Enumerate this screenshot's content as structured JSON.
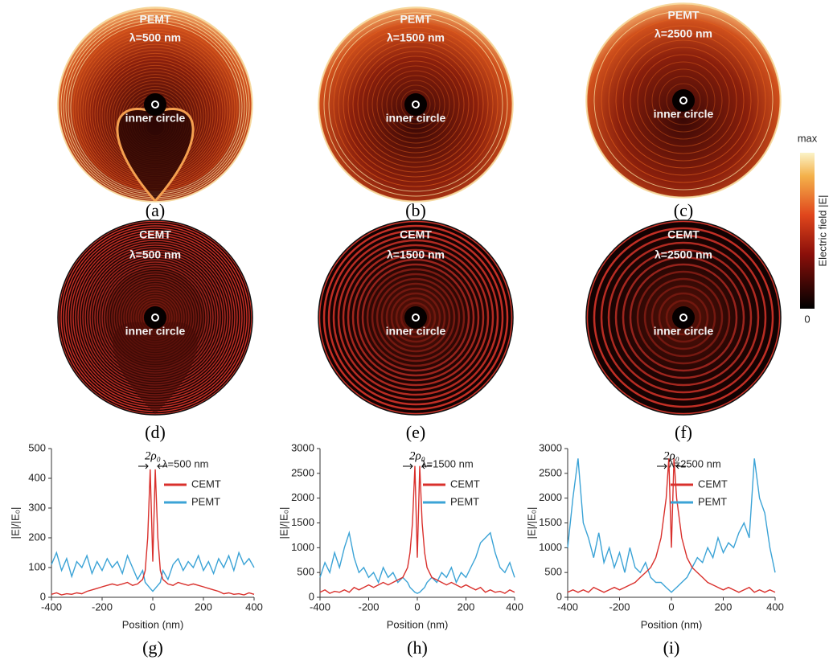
{
  "field_maps": [
    {
      "label": "(a)",
      "method": "PEMT",
      "wavelength": "λ=500 nm",
      "center_label": "inner circle"
    },
    {
      "label": "(b)",
      "method": "PEMT",
      "wavelength": "λ=1500 nm",
      "center_label": "inner circle"
    },
    {
      "label": "(c)",
      "method": "PEMT",
      "wavelength": "λ=2500 nm",
      "center_label": "inner circle"
    },
    {
      "label": "(d)",
      "method": "CEMT",
      "wavelength": "λ=500 nm",
      "center_label": "inner circle"
    },
    {
      "label": "(e)",
      "method": "CEMT",
      "wavelength": "λ=1500 nm",
      "center_label": "inner circle"
    },
    {
      "label": "(f)",
      "method": "CEMT",
      "wavelength": "λ=2500 nm",
      "center_label": "inner circle"
    }
  ],
  "colorbar": {
    "max": "max",
    "min": "0",
    "label": "Electric field |E|"
  },
  "chart_data": [
    {
      "type": "line",
      "panel": "(g)",
      "annotation": "λ=500 nm",
      "marker": "2ρ₀",
      "x_label": "Position (nm)",
      "y_label": "|E|/|E₀|",
      "x": [
        -400,
        -380,
        -360,
        -340,
        -320,
        -300,
        -280,
        -260,
        -240,
        -220,
        -200,
        -180,
        -160,
        -140,
        -120,
        -100,
        -80,
        -60,
        -40,
        -30,
        -20,
        -10,
        0,
        10,
        20,
        30,
        40,
        60,
        80,
        100,
        120,
        140,
        160,
        180,
        200,
        220,
        240,
        260,
        280,
        300,
        320,
        340,
        360,
        380,
        400
      ],
      "xlim": [
        -400,
        400
      ],
      "xticks": [
        -400,
        -200,
        0,
        200,
        400
      ],
      "ylim": [
        0,
        500
      ],
      "yticks": [
        0,
        100,
        200,
        300,
        400,
        500
      ],
      "series": [
        {
          "name": "CEMT",
          "color": "#d9302c",
          "values": [
            10,
            15,
            8,
            12,
            10,
            15,
            12,
            20,
            25,
            30,
            35,
            40,
            45,
            40,
            45,
            50,
            40,
            45,
            60,
            90,
            200,
            430,
            120,
            430,
            200,
            90,
            60,
            45,
            40,
            50,
            45,
            40,
            45,
            40,
            35,
            30,
            25,
            20,
            12,
            15,
            10,
            12,
            8,
            15,
            10
          ]
        },
        {
          "name": "PEMT",
          "color": "#3ba3d6",
          "values": [
            110,
            150,
            90,
            130,
            70,
            120,
            100,
            140,
            80,
            120,
            90,
            130,
            100,
            120,
            80,
            140,
            100,
            60,
            90,
            50,
            40,
            30,
            20,
            30,
            40,
            50,
            90,
            60,
            110,
            130,
            90,
            120,
            100,
            140,
            90,
            120,
            80,
            130,
            100,
            140,
            90,
            150,
            110,
            130,
            100
          ]
        }
      ]
    },
    {
      "type": "line",
      "panel": "(h)",
      "annotation": "λ=1500 nm",
      "marker": "2ρ₀",
      "x_label": "Position (nm)",
      "y_label": "|E|/|E₀|",
      "x": [
        -400,
        -380,
        -360,
        -340,
        -320,
        -300,
        -280,
        -260,
        -240,
        -220,
        -200,
        -180,
        -160,
        -140,
        -120,
        -100,
        -80,
        -60,
        -40,
        -30,
        -20,
        -10,
        0,
        10,
        20,
        30,
        40,
        60,
        80,
        100,
        120,
        140,
        160,
        180,
        200,
        220,
        240,
        260,
        280,
        300,
        320,
        340,
        360,
        380,
        400
      ],
      "xlim": [
        -400,
        400
      ],
      "xticks": [
        -400,
        -200,
        0,
        200,
        400
      ],
      "ylim": [
        0,
        3000
      ],
      "yticks": [
        0,
        500,
        1000,
        1500,
        2000,
        2500,
        3000
      ],
      "series": [
        {
          "name": "CEMT",
          "color": "#d9302c",
          "values": [
            100,
            150,
            80,
            120,
            100,
            150,
            100,
            200,
            150,
            200,
            250,
            200,
            250,
            300,
            250,
            300,
            350,
            400,
            600,
            900,
            1500,
            2650,
            800,
            2650,
            1500,
            900,
            600,
            400,
            350,
            300,
            250,
            300,
            250,
            200,
            250,
            200,
            150,
            200,
            100,
            150,
            100,
            120,
            80,
            150,
            100
          ]
        },
        {
          "name": "PEMT",
          "color": "#3ba3d6",
          "values": [
            400,
            700,
            500,
            900,
            600,
            1000,
            1300,
            800,
            500,
            600,
            400,
            500,
            300,
            600,
            400,
            500,
            300,
            400,
            300,
            200,
            150,
            100,
            80,
            100,
            150,
            200,
            300,
            400,
            300,
            500,
            400,
            600,
            300,
            500,
            400,
            600,
            800,
            1100,
            1200,
            1300,
            900,
            600,
            500,
            700,
            400
          ]
        }
      ]
    },
    {
      "type": "line",
      "panel": "(i)",
      "annotation": "λ=2500 nm",
      "marker": "2ρ₀",
      "x_label": "Position (nm)",
      "y_label": "|E|/|E₀|",
      "x": [
        -400,
        -380,
        -360,
        -340,
        -320,
        -300,
        -280,
        -260,
        -240,
        -220,
        -200,
        -180,
        -160,
        -140,
        -120,
        -100,
        -80,
        -60,
        -40,
        -30,
        -20,
        -10,
        0,
        10,
        20,
        30,
        40,
        60,
        80,
        100,
        120,
        140,
        160,
        180,
        200,
        220,
        240,
        260,
        280,
        300,
        320,
        340,
        360,
        380,
        400
      ],
      "xlim": [
        -400,
        400
      ],
      "xticks": [
        -400,
        -200,
        0,
        200,
        400
      ],
      "ylim": [
        0,
        3000
      ],
      "yticks": [
        0,
        500,
        1000,
        1500,
        2000,
        2500,
        3000
      ],
      "series": [
        {
          "name": "CEMT",
          "color": "#d9302c",
          "values": [
            100,
            150,
            100,
            150,
            100,
            200,
            150,
            100,
            150,
            200,
            150,
            200,
            250,
            300,
            400,
            500,
            600,
            800,
            1200,
            1600,
            2000,
            2800,
            1000,
            2800,
            2000,
            1600,
            1200,
            800,
            600,
            500,
            400,
            300,
            250,
            200,
            150,
            200,
            150,
            100,
            150,
            200,
            100,
            150,
            100,
            150,
            100
          ]
        },
        {
          "name": "PEMT",
          "color": "#3ba3d6",
          "values": [
            1000,
            2000,
            2800,
            1500,
            1200,
            800,
            1300,
            700,
            1000,
            600,
            900,
            500,
            1000,
            600,
            500,
            700,
            400,
            300,
            300,
            250,
            200,
            150,
            100,
            150,
            200,
            250,
            300,
            400,
            600,
            800,
            700,
            1000,
            800,
            1200,
            900,
            1100,
            1000,
            1300,
            1500,
            1200,
            2800,
            2000,
            1700,
            1000,
            500
          ]
        }
      ]
    }
  ]
}
